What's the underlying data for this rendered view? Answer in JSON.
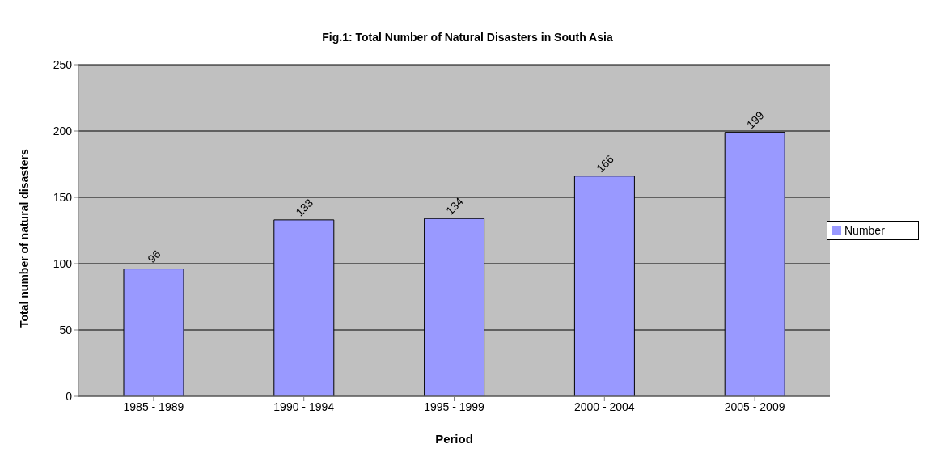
{
  "chart_data": {
    "type": "bar",
    "title": "Fig.1: Total Number of Natural Disasters in South Asia",
    "xlabel": "Period",
    "ylabel": "Total number of natural disasters",
    "categories": [
      "1985 - 1989",
      "1990 - 1994",
      "1995 - 1999",
      "2000 - 2004",
      "2005 - 2009"
    ],
    "series": [
      {
        "name": "Number",
        "color": "#9999ff",
        "values": [
          96,
          133,
          134,
          166,
          199
        ]
      }
    ],
    "ylim": [
      0,
      250
    ],
    "yticks": [
      0,
      50,
      100,
      150,
      200,
      250
    ],
    "grid": "y",
    "legend": "right",
    "data_labels": true
  }
}
